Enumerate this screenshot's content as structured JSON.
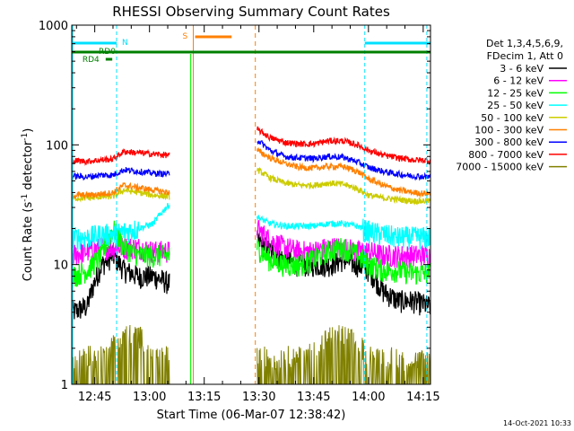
{
  "chart_data": {
    "type": "line",
    "title": "RHESSI Observing Summary Count Rates",
    "xlabel": "Start Time (06-Mar-07 12:38:42)",
    "ylabel": "Count Rate (s",
    "ylabel_sup": "-1",
    "ylabel_tail": " detector",
    "ylabel_tail_sup": "-1",
    "ylabel_close": ")",
    "yscale": "log",
    "ylim": [
      1,
      1000
    ],
    "xlim_minutes": [
      38.7,
      137
    ],
    "y_ticks": [
      "1",
      "10",
      "100",
      "1000"
    ],
    "x_ticks": [
      {
        "label": "12:45",
        "minute": 45
      },
      {
        "label": "13:00",
        "minute": 60
      },
      {
        "label": "13:15",
        "minute": 75
      },
      {
        "label": "13:30",
        "minute": 90
      },
      {
        "label": "13:45",
        "minute": 105
      },
      {
        "label": "14:00",
        "minute": 120
      },
      {
        "label": "14:15",
        "minute": 135
      }
    ],
    "legend_header": [
      "Det 1,3,4,5,6,9,",
      "FDecim 1, Att 0"
    ],
    "legend_placement": "right",
    "timestamp": "14-Oct-2021 10:33",
    "data_gap_minutes": [
      72.5,
      89.5
    ],
    "series": [
      {
        "name": "3 - 6 keV",
        "color": "#000000",
        "pre": [
          4,
          4.5,
          10,
          12,
          9,
          8,
          8,
          7
        ],
        "post": [
          16,
          13,
          11,
          10,
          10,
          10,
          11,
          10,
          9,
          6,
          5,
          5,
          4.5
        ]
      },
      {
        "name": "6 - 12 keV",
        "color": "#ff00ff",
        "pre": [
          12,
          13,
          14,
          14,
          14,
          14,
          13,
          13
        ],
        "post": [
          20,
          16,
          14,
          13,
          13,
          14,
          14,
          13,
          13,
          12,
          12,
          12,
          12
        ]
      },
      {
        "name": "12 - 25 keV",
        "color": "#00ff00",
        "pre": [
          8,
          9,
          12,
          20,
          14,
          12,
          12,
          12
        ],
        "post": [
          14,
          11,
          10,
          10,
          11,
          13,
          14,
          12,
          10,
          9,
          9,
          8.5,
          8.5
        ]
      },
      {
        "name": "25 - 50 keV",
        "color": "#00ffff",
        "pre": [
          17,
          17,
          18,
          18,
          19,
          20,
          22,
          32
        ],
        "post": [
          25,
          22,
          21,
          21,
          21,
          22,
          22,
          21,
          19,
          18,
          17,
          17,
          17
        ]
      },
      {
        "name": "50 - 100 keV",
        "color": "#cccc00",
        "pre": [
          36,
          36,
          37,
          37,
          42,
          40,
          38,
          37
        ],
        "post": [
          62,
          53,
          48,
          46,
          46,
          48,
          47,
          43,
          38,
          36,
          35,
          34,
          34
        ]
      },
      {
        "name": "100 - 300 keV",
        "color": "#ff8000",
        "pre": [
          38,
          38,
          39,
          40,
          46,
          44,
          42,
          40
        ],
        "post": [
          90,
          78,
          70,
          65,
          64,
          66,
          66,
          60,
          52,
          46,
          42,
          40,
          39
        ]
      },
      {
        "name": "300 - 800 keV",
        "color": "#0000ff",
        "pre": [
          55,
          54,
          56,
          56,
          62,
          60,
          58,
          57
        ],
        "post": [
          110,
          90,
          80,
          78,
          77,
          80,
          79,
          72,
          65,
          60,
          57,
          55,
          54
        ]
      },
      {
        "name": "800 - 7000 keV",
        "color": "#ff0000",
        "pre": [
          74,
          73,
          75,
          76,
          88,
          86,
          84,
          82
        ],
        "post": [
          135,
          115,
          105,
          102,
          102,
          108,
          108,
          100,
          90,
          82,
          78,
          75,
          74
        ]
      },
      {
        "name": "7000 - 15000 keV",
        "color": "#808000",
        "pre": [
          1.6,
          1.8,
          1.7,
          2.2,
          2.6,
          2.6,
          1.8,
          1.7
        ],
        "post": [
          1.8,
          1.7,
          1.7,
          1.8,
          1.9,
          2.5,
          2.6,
          2.2,
          1.8,
          1.7,
          1.7,
          1.6,
          1.6
        ]
      }
    ],
    "pre_x_minutes": [
      38.7,
      43,
      47,
      50,
      53,
      57,
      61,
      65.5
    ],
    "post_x_minutes": [
      89.5,
      93,
      97,
      101,
      105,
      109,
      113,
      117,
      120,
      124,
      128,
      132,
      137
    ],
    "annotations": {
      "N_label": "N",
      "S_label": "S",
      "RD0_label": "RD0",
      "RD4_label": "RD4",
      "night_color": "#00e0ff",
      "saa_color": "#ff8000",
      "decim_color": "#008000"
    },
    "night_bars_minutes": [
      [
        38.7,
        51
      ],
      [
        119,
        137
      ]
    ],
    "night_boundary_minutes": [
      51,
      119,
      136
    ],
    "saa_bar_minutes": [
      72.5,
      82.5
    ],
    "saa_boundary_minutes": [
      72,
      89
    ],
    "decim_bar_minutes": [
      38.7,
      137
    ],
    "rd4_bar_minutes": [
      48,
      49.8
    ]
  }
}
